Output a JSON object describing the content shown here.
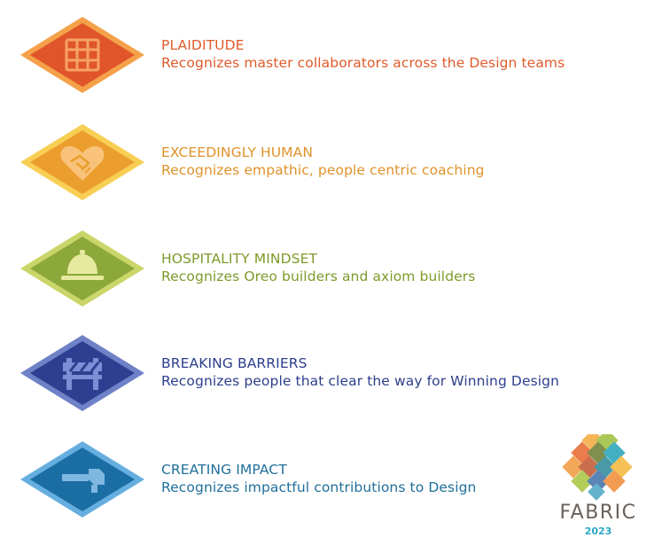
{
  "awards": [
    {
      "title": "PLAIDITUDE",
      "description": "Recognizes master collaborators across the Design teams",
      "icon": "grid-plaid-icon",
      "color": "#e05a2b",
      "outer": "#f4a14a",
      "inner": "#e1552a"
    },
    {
      "title": "EXCEEDINGLY HUMAN",
      "description": "Recognizes empathic, people centric coaching",
      "icon": "heart-handshake-icon",
      "color": "#e0922a",
      "outer": "#f8cf55",
      "inner": "#eb9e2d"
    },
    {
      "title": "HOSPITALITY MINDSET",
      "description": "Recognizes Oreo builders and axiom builders",
      "icon": "service-bell-icon",
      "color": "#7f9a2b",
      "outer": "#cbd66a",
      "inner": "#8ca83a"
    },
    {
      "title": "BREAKING BARRIERS",
      "description": "Recognizes people that clear the way for Winning Design",
      "icon": "barrier-icon",
      "color": "#2d3f8c",
      "outer": "#6f82c7",
      "inner": "#2e3f91"
    },
    {
      "title": "CREATING IMPACT",
      "description": "Recognizes impactful contributions to Design",
      "icon": "hammer-icon",
      "color": "#1f6f9a",
      "outer": "#67aee0",
      "inner": "#1a6ea4"
    }
  ],
  "logo": {
    "name": "FABRIC",
    "year": "2023"
  }
}
